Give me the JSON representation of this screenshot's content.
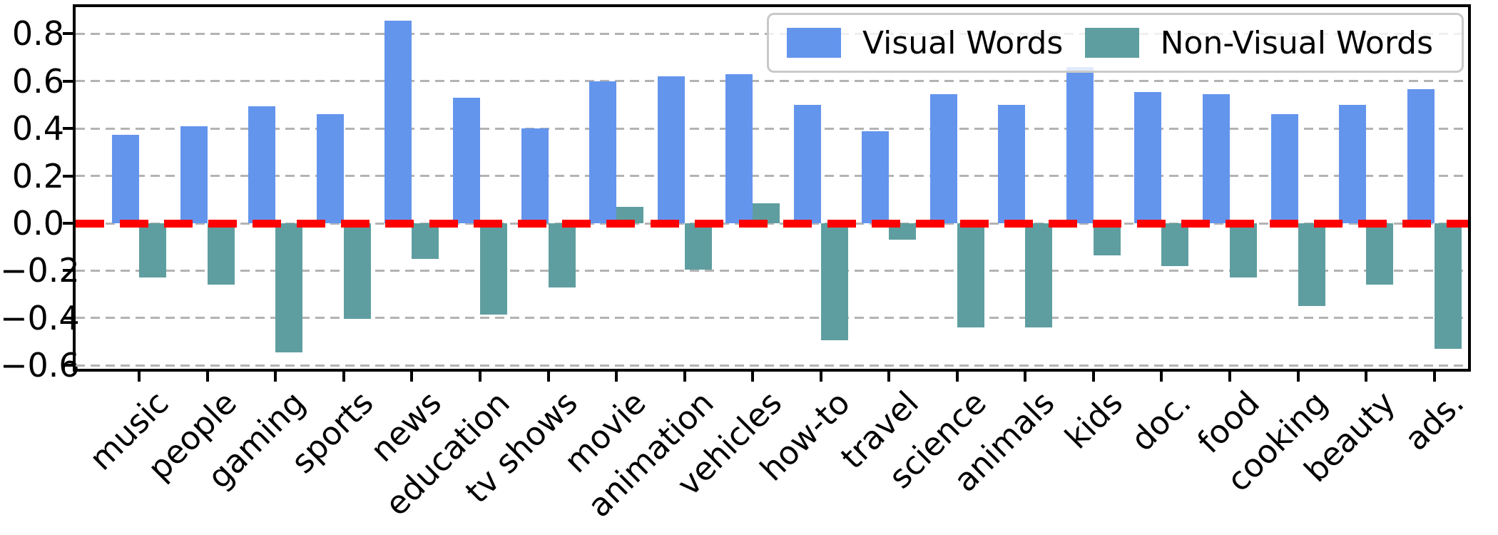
{
  "chart_data": {
    "type": "bar",
    "title": "",
    "xlabel": "",
    "ylabel": "",
    "categories": [
      "music",
      "people",
      "gaming",
      "sports",
      "news",
      "education",
      "tv shows",
      "movie",
      "animation",
      "vehicles",
      "how-to",
      "travel",
      "science",
      "animals",
      "kids",
      "doc.",
      "food",
      "cooking",
      "beauty",
      "ads."
    ],
    "series": [
      {
        "name": "Visual Words",
        "color": "#6495ED",
        "values": [
          0.375,
          0.41,
          0.495,
          0.46,
          0.855,
          0.53,
          0.4,
          0.6,
          0.62,
          0.63,
          0.5,
          0.39,
          0.545,
          0.5,
          0.66,
          0.555,
          0.545,
          0.46,
          0.5,
          0.565
        ]
      },
      {
        "name": "Non-Visual Words",
        "color": "#5F9EA0",
        "values": [
          -0.23,
          -0.26,
          -0.545,
          -0.405,
          -0.15,
          -0.385,
          -0.27,
          0.07,
          -0.195,
          0.085,
          -0.495,
          -0.07,
          -0.44,
          -0.44,
          -0.135,
          -0.18,
          -0.23,
          -0.35,
          -0.26,
          -0.53
        ]
      }
    ],
    "ylim": [
      -0.615,
      0.91
    ],
    "yticks": [
      0.8,
      0.6,
      0.4,
      0.2,
      0.0,
      -0.2,
      -0.4,
      -0.6
    ],
    "ytick_labels": [
      "0.8",
      "0.6",
      "0.4",
      "0.2",
      "0.0",
      "−0.2",
      "−0.4",
      "−0.6"
    ],
    "grid": "horizontal dashed, color #b3b3b3",
    "zero_line": {
      "value": 0.0,
      "color": "#FF0000",
      "style": "dashed",
      "width": 11
    },
    "legend_position": "upper right",
    "bar_group": "paired, visual left / non-visual right"
  },
  "legend": {
    "items": [
      {
        "label": "Visual Words",
        "color": "#6495ED"
      },
      {
        "label": "Non-Visual Words",
        "color": "#5F9EA0"
      }
    ]
  }
}
